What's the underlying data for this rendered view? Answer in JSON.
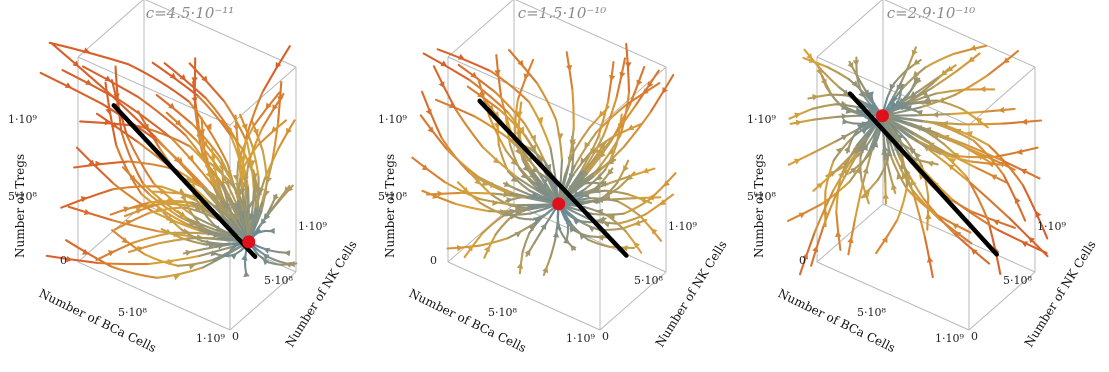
{
  "figure": {
    "colors": {
      "stream_far": "#d8602a",
      "stream_mid": "#d7a23a",
      "stream_near": "#5a86a6",
      "equilibrium_line": "#000000",
      "equilibrium_point": "#e0101a",
      "box": "#b9b9b9"
    }
  },
  "chart_data": [
    {
      "type": "streamplot-3d",
      "title": "c=4.5·10⁻¹¹",
      "xlabel": "Number of BCa Cells",
      "ylabel": "Number of NK Cells",
      "zlabel": "Number of Tregs",
      "xticks": [
        "5·10⁸",
        "1·10⁹"
      ],
      "yticks": [
        "0",
        "5·10⁸",
        "1·10⁹"
      ],
      "zticks": [
        "0",
        "5·10⁸",
        "1·10⁹"
      ],
      "xlim": [
        0,
        1000000000
      ],
      "ylim": [
        0,
        1000000000
      ],
      "zlim": [
        0,
        1000000000
      ],
      "equilibrium_point": {
        "x": 950000000,
        "y": 400000000,
        "z": 300000000
      },
      "equilibrium_line": [
        {
          "x": 40000000,
          "y": 450000000,
          "z": 650000000
        },
        {
          "x": 1000000000,
          "y": 380000000,
          "z": 250000000
        }
      ]
    },
    {
      "type": "streamplot-3d",
      "title": "c=1.5·10⁻¹⁰",
      "xlabel": "Number of BCa Cells",
      "ylabel": "Number of NK Cells",
      "zlabel": "Number of Tregs",
      "xticks": [
        "5·10⁸",
        "1·10⁹"
      ],
      "yticks": [
        "0",
        "5·10⁸",
        "1·10⁹"
      ],
      "zticks": [
        "0",
        "5·10⁸",
        "1·10⁹"
      ],
      "xlim": [
        0,
        1000000000
      ],
      "ylim": [
        0,
        1000000000
      ],
      "zlim": [
        0,
        1000000000
      ],
      "equilibrium_point": {
        "x": 520000000,
        "y": 480000000,
        "z": 320000000
      },
      "equilibrium_line": [
        {
          "x": 0,
          "y": 480000000,
          "z": 650000000
        },
        {
          "x": 1000000000,
          "y": 400000000,
          "z": 250000000
        }
      ]
    },
    {
      "type": "streamplot-3d",
      "title": "c=2.9·10⁻¹⁰",
      "xlabel": "Number of BCa Cells",
      "ylabel": "Number of NK Cells",
      "zlabel": "Number of Tregs",
      "xticks": [
        "5·10⁸",
        "1·10⁹"
      ],
      "yticks": [
        "0",
        "5·10⁸",
        "1·10⁹"
      ],
      "zticks": [
        "0",
        "5·10⁸",
        "1·10⁹"
      ],
      "xlim": [
        0,
        1000000000
      ],
      "ylim": [
        0,
        1000000000
      ],
      "zlim": [
        0,
        1000000000
      ],
      "equilibrium_point": {
        "x": 170000000,
        "y": 600000000,
        "z": 600000000
      },
      "equilibrium_line": [
        {
          "x": 0,
          "y": 500000000,
          "z": 680000000
        },
        {
          "x": 1000000000,
          "y": 420000000,
          "z": 250000000
        }
      ]
    }
  ]
}
